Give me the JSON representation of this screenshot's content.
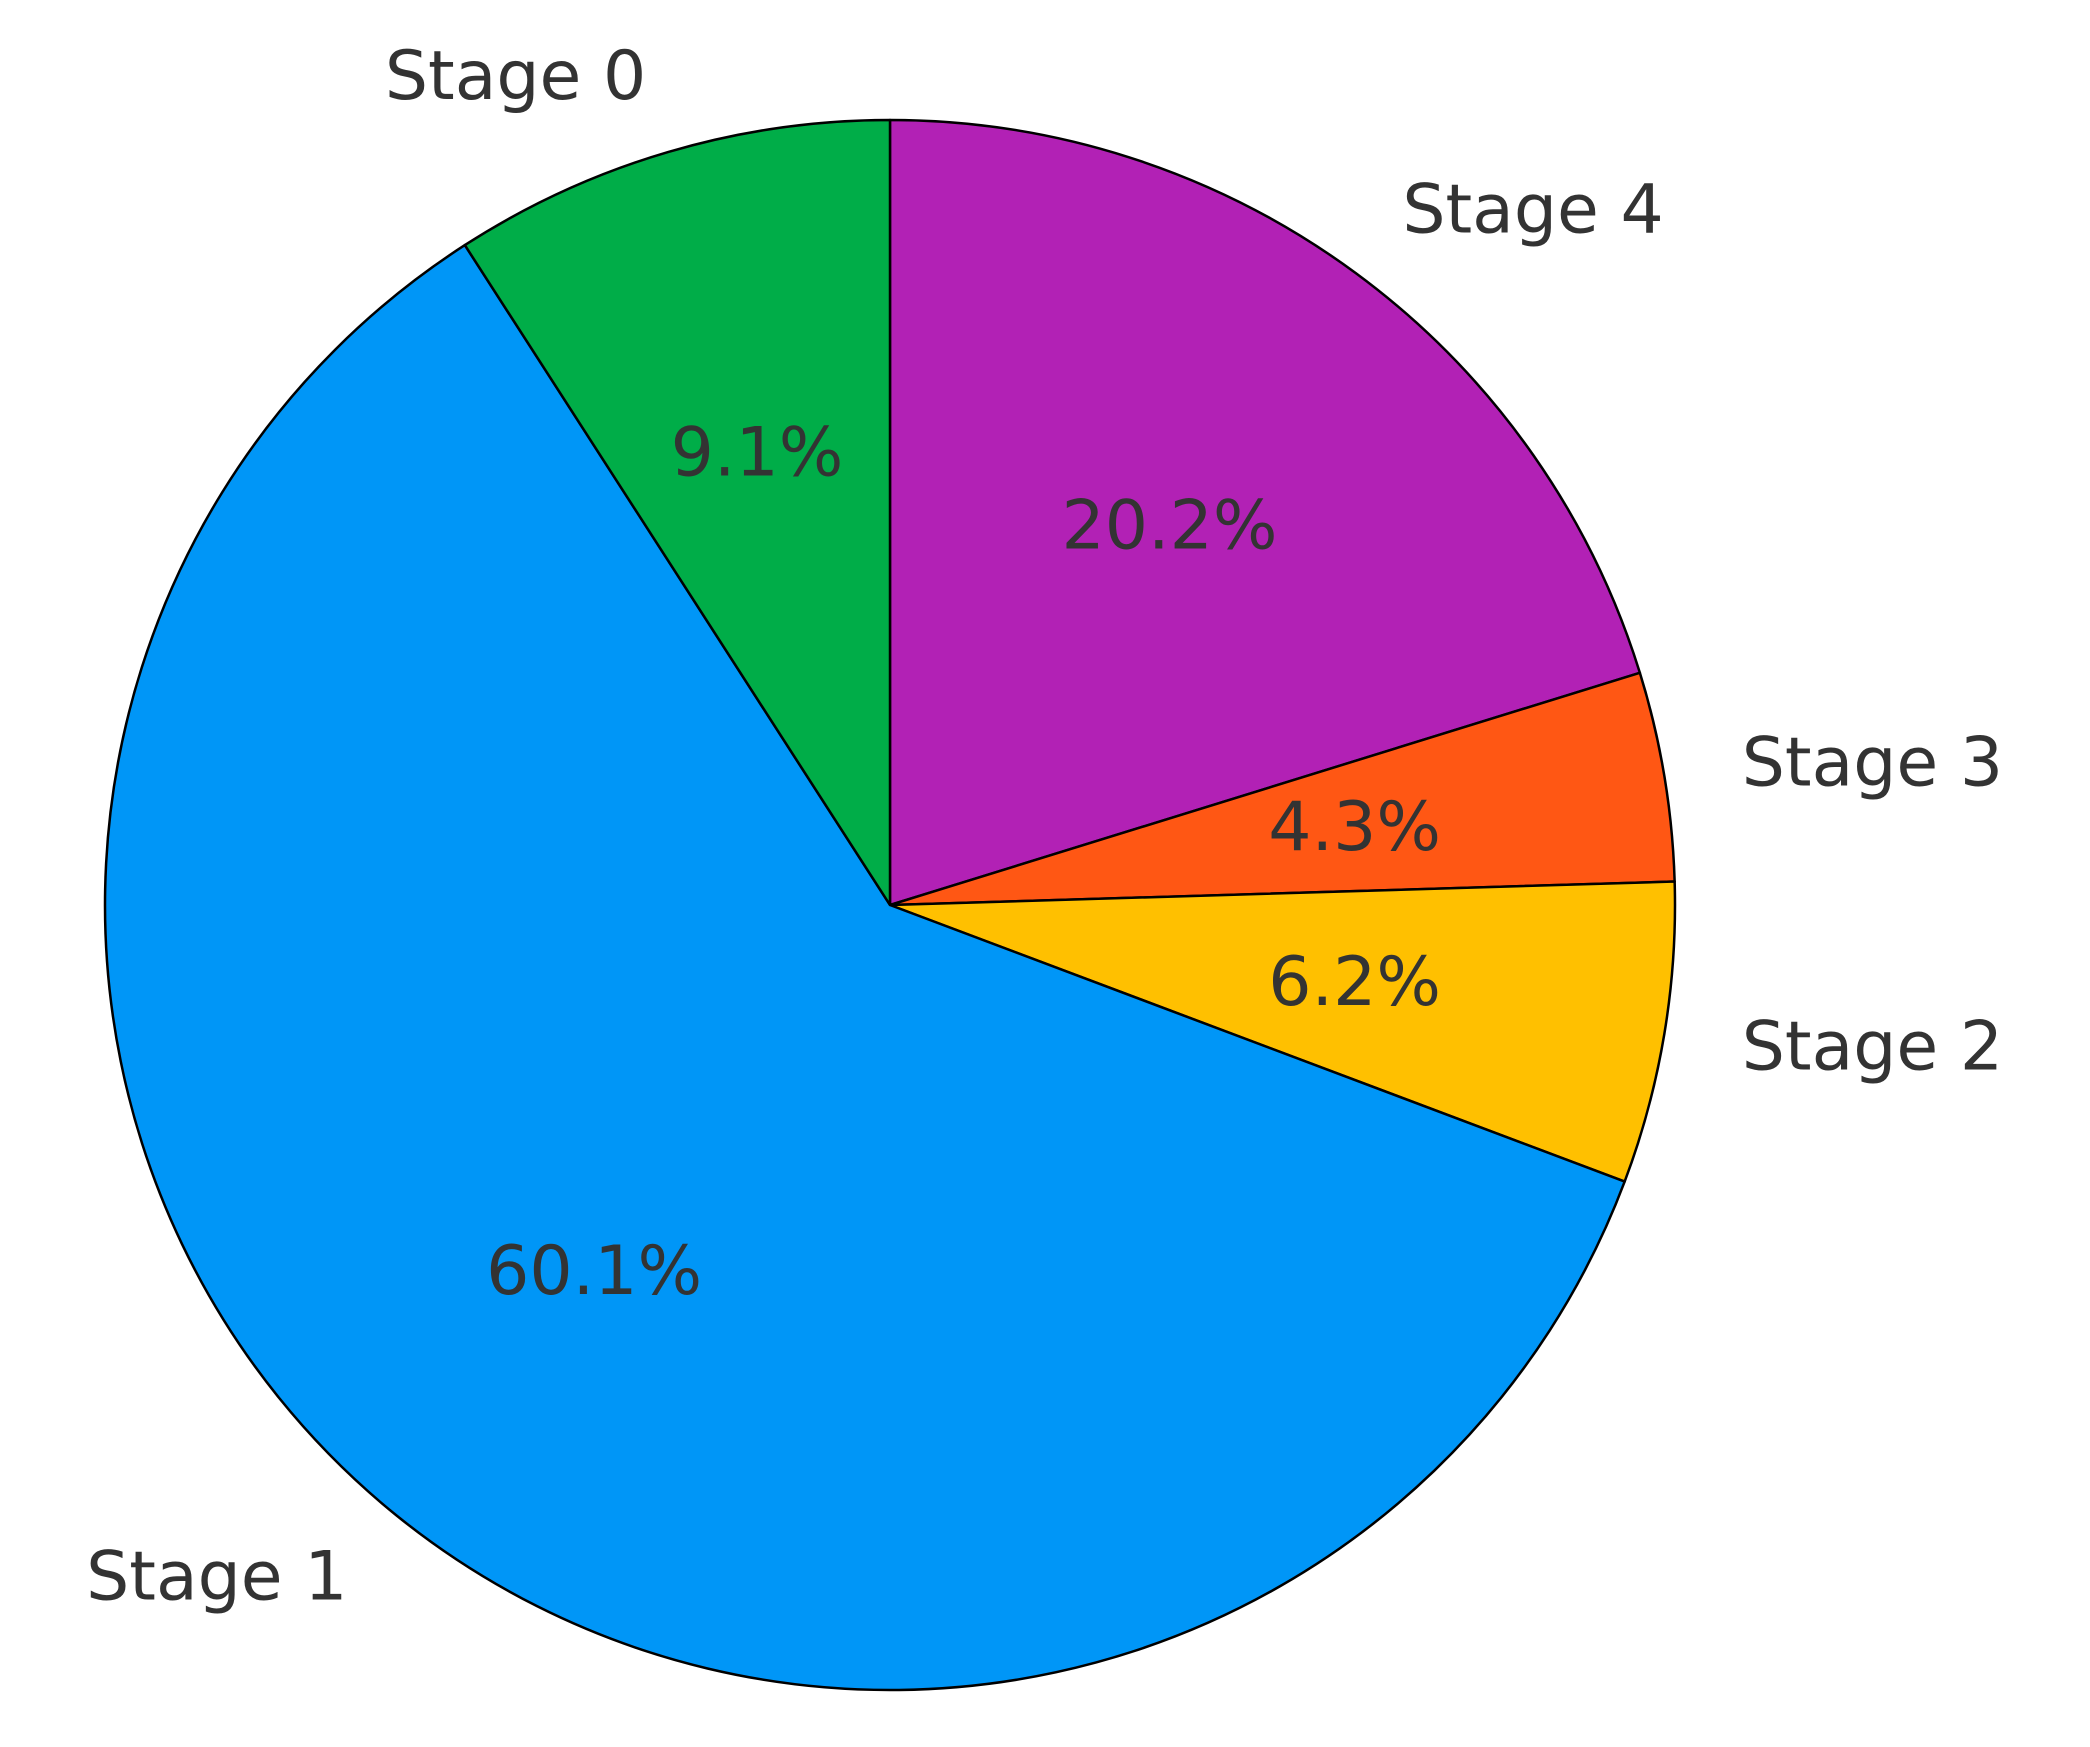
{
  "chart_data": {
    "type": "pie",
    "categories": [
      "Stage 4",
      "Stage 3",
      "Stage 2",
      "Stage 1",
      "Stage 0"
    ],
    "values": [
      20.2,
      4.3,
      6.2,
      60.1,
      9.1
    ],
    "value_labels": [
      "20.2%",
      "4.3%",
      "6.2%",
      "60.1%",
      "9.1%"
    ],
    "colors": [
      "#B221B5",
      "#FF5714",
      "#FFC000",
      "#0096F7",
      "#00AD48"
    ],
    "start_angle_deg": 90,
    "direction": "clockwise",
    "edge_color": "#000000",
    "text_color": "#333333",
    "title": ""
  }
}
